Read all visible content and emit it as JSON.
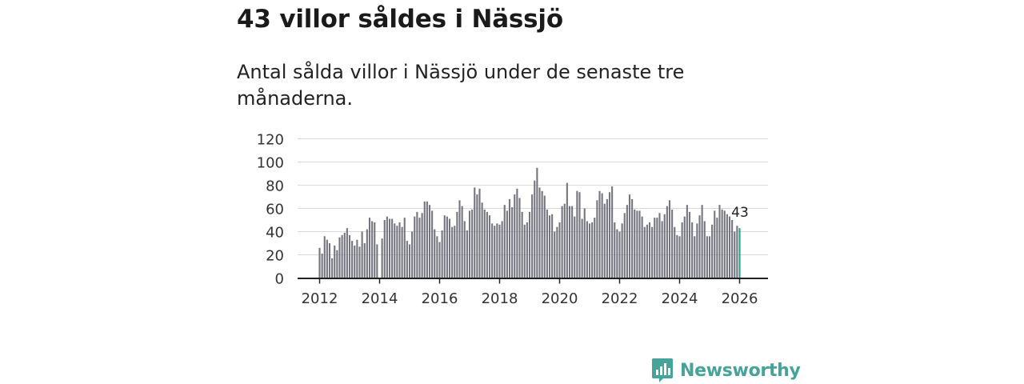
{
  "header": {
    "title": "43 villor såldes i Nässjö",
    "subtitle": "Antal sålda villor i Nässjö under de senaste tre månaderna."
  },
  "brand": {
    "name": "Newsworthy"
  },
  "colors": {
    "bar": "#75757f",
    "highlight": "#2a9d92",
    "grid": "#d9d9d9",
    "axis": "#222222",
    "brand": "#46a39a"
  },
  "chart_data": {
    "type": "bar",
    "title": "Antal sålda villor i Nässjö under de senaste tre månaderna.",
    "xlabel": "",
    "ylabel": "",
    "ylim": [
      0,
      120
    ],
    "yticks": [
      "0",
      "20",
      "40",
      "60",
      "80",
      "100",
      "120"
    ],
    "xticks": [
      "2012",
      "2014",
      "2016",
      "2018",
      "2020",
      "2022",
      "2024",
      "2026"
    ],
    "x_start": "2012-01",
    "grid": true,
    "last_value_label": "43",
    "values": [
      26,
      21,
      36,
      33,
      30,
      17,
      28,
      24,
      35,
      37,
      39,
      43,
      37,
      32,
      28,
      33,
      27,
      40,
      30,
      42,
      52,
      49,
      48,
      29,
      0,
      34,
      50,
      53,
      51,
      51,
      47,
      45,
      48,
      44,
      52,
      32,
      29,
      40,
      53,
      57,
      52,
      56,
      66,
      66,
      63,
      58,
      42,
      36,
      31,
      41,
      54,
      53,
      51,
      44,
      45,
      57,
      67,
      62,
      49,
      41,
      58,
      59,
      78,
      72,
      77,
      65,
      59,
      57,
      54,
      47,
      45,
      47,
      46,
      49,
      63,
      58,
      68,
      61,
      72,
      77,
      69,
      57,
      46,
      48,
      57,
      72,
      84,
      95,
      78,
      75,
      71,
      59,
      54,
      55,
      40,
      44,
      48,
      62,
      64,
      82,
      62,
      62,
      53,
      75,
      74,
      51,
      60,
      49,
      47,
      48,
      52,
      67,
      75,
      73,
      64,
      68,
      74,
      79,
      48,
      42,
      40,
      47,
      56,
      63,
      72,
      68,
      59,
      58,
      58,
      53,
      44,
      46,
      48,
      44,
      52,
      52,
      56,
      49,
      55,
      62,
      67,
      59,
      44,
      37,
      36,
      48,
      53,
      63,
      57,
      48,
      36,
      47,
      54,
      63,
      49,
      36,
      36,
      46,
      58,
      52,
      63,
      59,
      58,
      55,
      53,
      50,
      40,
      45,
      43
    ]
  }
}
